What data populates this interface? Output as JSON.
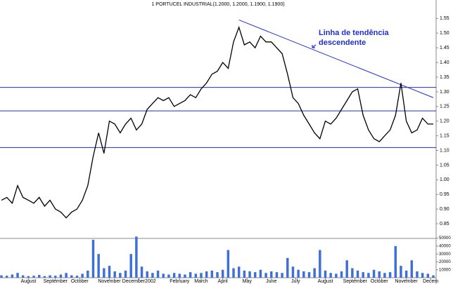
{
  "chart_data": {
    "type": "line",
    "title": "1 PORTUCEL INDUSTRIAL(1.2000, 1.2000, 1.1900, 1.1900)",
    "annotation": [
      "Linha de tendência",
      "descendente"
    ],
    "xlim": [
      0,
      80
    ],
    "xticks": [
      {
        "value": 5,
        "label": "August"
      },
      {
        "value": 10,
        "label": "September"
      },
      {
        "value": 14.5,
        "label": "October"
      },
      {
        "value": 20,
        "label": "November"
      },
      {
        "value": 25.5,
        "label": "December2002"
      },
      {
        "value": 33,
        "label": "February"
      },
      {
        "value": 37,
        "label": "March"
      },
      {
        "value": 41,
        "label": "April"
      },
      {
        "value": 45.5,
        "label": "May"
      },
      {
        "value": 50,
        "label": "June"
      },
      {
        "value": 54.5,
        "label": "July"
      },
      {
        "value": 60,
        "label": "August"
      },
      {
        "value": 65.5,
        "label": "September"
      },
      {
        "value": 70,
        "label": "October"
      },
      {
        "value": 75,
        "label": "November"
      },
      {
        "value": 79.5,
        "label": "Decem"
      }
    ],
    "ylim": [
      0.8,
      1.57
    ],
    "yticks": [
      0.85,
      {
        "value": 0.9,
        "label": "0.90"
      },
      0.95,
      {
        "value": 1.0,
        "label": "1.00"
      },
      1.05,
      {
        "value": 1.1,
        "label": "1.10"
      },
      1.15,
      {
        "value": 1.2,
        "label": "1.20"
      },
      1.25,
      {
        "value": 1.3,
        "label": "1.30"
      },
      1.35,
      {
        "value": 1.4,
        "label": "1.40"
      },
      1.45,
      {
        "value": 1.5,
        "label": "1.50"
      },
      1.55
    ],
    "hlines": [
      1.11,
      1.235,
      1.315
    ],
    "trendline": {
      "x": [
        44,
        80
      ],
      "y": [
        1.545,
        1.28
      ],
      "color": "#1f2fd0"
    },
    "series": [
      {
        "color": "#000000",
        "values": [
          0.93,
          0.94,
          0.92,
          0.98,
          0.94,
          0.93,
          0.92,
          0.94,
          0.91,
          0.93,
          0.9,
          0.89,
          0.87,
          0.89,
          0.9,
          0.93,
          0.98,
          1.08,
          1.16,
          1.09,
          1.2,
          1.19,
          1.16,
          1.19,
          1.21,
          1.17,
          1.19,
          1.24,
          1.26,
          1.28,
          1.27,
          1.28,
          1.25,
          1.26,
          1.27,
          1.29,
          1.28,
          1.31,
          1.33,
          1.36,
          1.37,
          1.4,
          1.38,
          1.47,
          1.52,
          1.46,
          1.47,
          1.45,
          1.49,
          1.47,
          1.47,
          1.45,
          1.43,
          1.36,
          1.28,
          1.26,
          1.22,
          1.19,
          1.16,
          1.14,
          1.2,
          1.19,
          1.21,
          1.24,
          1.27,
          1.3,
          1.31,
          1.22,
          1.17,
          1.14,
          1.13,
          1.15,
          1.17,
          1.22,
          1.33,
          1.2,
          1.16,
          1.17,
          1.21,
          1.19,
          1.19
        ]
      }
    ],
    "volume": {
      "color": "#3d6fd6",
      "ylim": [
        0,
        55000
      ],
      "yticks": [
        10000,
        20000,
        30000,
        40000,
        50000
      ],
      "values": [
        3000,
        2500,
        4000,
        6000,
        3000,
        2000,
        2500,
        3500,
        2000,
        3000,
        2500,
        4000,
        6000,
        3000,
        2500,
        5000,
        9000,
        48000,
        30000,
        12000,
        15000,
        8000,
        6000,
        9000,
        30000,
        52000,
        14000,
        8000,
        6000,
        9000,
        5000,
        4000,
        6000,
        5000,
        4000,
        7000,
        5000,
        6000,
        8000,
        9000,
        7000,
        10000,
        35000,
        12000,
        14000,
        9000,
        8000,
        7000,
        10000,
        6000,
        8000,
        7000,
        6000,
        25000,
        14000,
        10000,
        8000,
        7000,
        12000,
        35000,
        9000,
        6000,
        5000,
        8000,
        22000,
        12000,
        9000,
        7000,
        6000,
        10000,
        8000,
        6000,
        7000,
        40000,
        15000,
        9000,
        22000,
        8000,
        6000,
        5000,
        3000
      ]
    }
  }
}
